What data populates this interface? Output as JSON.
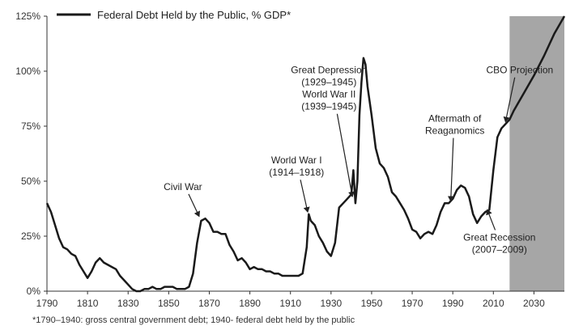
{
  "chart_data": {
    "type": "line",
    "legend": "Federal Debt Held by the Public, % GDP*",
    "legend_position": "top-left",
    "xlim": [
      1790,
      2045
    ],
    "ylim": [
      0,
      125
    ],
    "x_ticks": [
      "1790",
      "1810",
      "1830",
      "1850",
      "1870",
      "1890",
      "1910",
      "1930",
      "1950",
      "1970",
      "1990",
      "2010",
      "2030"
    ],
    "y_ticks": [
      "0%",
      "25%",
      "50%",
      "75%",
      "100%",
      "125%"
    ],
    "series": [
      {
        "name": "Federal Debt Held by the Public, % GDP*",
        "color": "#1a1a1a",
        "points": [
          [
            1790,
            40
          ],
          [
            1792,
            36
          ],
          [
            1794,
            30
          ],
          [
            1796,
            24
          ],
          [
            1798,
            20
          ],
          [
            1800,
            19
          ],
          [
            1802,
            17
          ],
          [
            1804,
            16
          ],
          [
            1806,
            12
          ],
          [
            1808,
            9
          ],
          [
            1810,
            6
          ],
          [
            1812,
            9
          ],
          [
            1814,
            13
          ],
          [
            1816,
            15
          ],
          [
            1818,
            13
          ],
          [
            1820,
            12
          ],
          [
            1822,
            11
          ],
          [
            1824,
            10
          ],
          [
            1826,
            7
          ],
          [
            1828,
            5
          ],
          [
            1830,
            3
          ],
          [
            1832,
            1
          ],
          [
            1834,
            0
          ],
          [
            1836,
            0
          ],
          [
            1838,
            1
          ],
          [
            1840,
            1
          ],
          [
            1842,
            2
          ],
          [
            1844,
            1
          ],
          [
            1846,
            1
          ],
          [
            1848,
            2
          ],
          [
            1850,
            2
          ],
          [
            1852,
            2
          ],
          [
            1854,
            1
          ],
          [
            1856,
            1
          ],
          [
            1858,
            1
          ],
          [
            1860,
            2
          ],
          [
            1862,
            8
          ],
          [
            1864,
            22
          ],
          [
            1866,
            32
          ],
          [
            1868,
            33
          ],
          [
            1870,
            31
          ],
          [
            1872,
            27
          ],
          [
            1874,
            27
          ],
          [
            1876,
            26
          ],
          [
            1878,
            26
          ],
          [
            1880,
            21
          ],
          [
            1882,
            18
          ],
          [
            1884,
            14
          ],
          [
            1886,
            15
          ],
          [
            1888,
            13
          ],
          [
            1890,
            10
          ],
          [
            1892,
            11
          ],
          [
            1894,
            10
          ],
          [
            1896,
            10
          ],
          [
            1898,
            9
          ],
          [
            1900,
            9
          ],
          [
            1902,
            8
          ],
          [
            1904,
            8
          ],
          [
            1906,
            7
          ],
          [
            1908,
            7
          ],
          [
            1910,
            7
          ],
          [
            1912,
            7
          ],
          [
            1914,
            7
          ],
          [
            1916,
            8
          ],
          [
            1918,
            20
          ],
          [
            1919,
            35
          ],
          [
            1920,
            32
          ],
          [
            1922,
            30
          ],
          [
            1924,
            25
          ],
          [
            1926,
            22
          ],
          [
            1928,
            18
          ],
          [
            1930,
            16
          ],
          [
            1932,
            22
          ],
          [
            1934,
            38
          ],
          [
            1936,
            40
          ],
          [
            1938,
            42
          ],
          [
            1940,
            44
          ],
          [
            1941,
            55
          ],
          [
            1942,
            40
          ],
          [
            1943,
            50
          ],
          [
            1944,
            80
          ],
          [
            1945,
            95
          ],
          [
            1946,
            106
          ],
          [
            1947,
            103
          ],
          [
            1948,
            93
          ],
          [
            1950,
            80
          ],
          [
            1952,
            65
          ],
          [
            1954,
            58
          ],
          [
            1956,
            56
          ],
          [
            1958,
            52
          ],
          [
            1960,
            45
          ],
          [
            1962,
            43
          ],
          [
            1964,
            40
          ],
          [
            1966,
            37
          ],
          [
            1968,
            33
          ],
          [
            1970,
            28
          ],
          [
            1972,
            27
          ],
          [
            1974,
            24
          ],
          [
            1976,
            26
          ],
          [
            1978,
            27
          ],
          [
            1980,
            26
          ],
          [
            1982,
            30
          ],
          [
            1984,
            36
          ],
          [
            1986,
            40
          ],
          [
            1988,
            40
          ],
          [
            1990,
            42
          ],
          [
            1992,
            46
          ],
          [
            1994,
            48
          ],
          [
            1996,
            47
          ],
          [
            1998,
            43
          ],
          [
            2000,
            35
          ],
          [
            2002,
            31
          ],
          [
            2004,
            34
          ],
          [
            2006,
            36
          ],
          [
            2008,
            37
          ],
          [
            2010,
            55
          ],
          [
            2012,
            70
          ],
          [
            2014,
            74
          ],
          [
            2016,
            76
          ],
          [
            2018,
            78
          ],
          [
            2020,
            82
          ],
          [
            2025,
            90
          ],
          [
            2030,
            98
          ],
          [
            2035,
            107
          ],
          [
            2040,
            117
          ],
          [
            2045,
            125
          ]
        ]
      }
    ],
    "projection": {
      "from": 2018,
      "to": 2045,
      "color": "#a6a6a6"
    },
    "annotations": [
      {
        "lines": [
          "Civil War"
        ],
        "text_at": [
          1857,
          46
        ],
        "arrow_to": [
          1865,
          34
        ]
      },
      {
        "lines": [
          "World War I",
          "(1914–1918)"
        ],
        "text_at": [
          1913,
          58
        ],
        "arrow_to": [
          1918.5,
          36
        ]
      },
      {
        "lines": [
          "Great Depression",
          "(1929–1945)",
          "World War II",
          "(1939–1945)"
        ],
        "text_at": [
          1929,
          99
        ],
        "arrow_to": [
          1940.5,
          43
        ]
      },
      {
        "lines": [
          "Aftermath of",
          "Reaganomics"
        ],
        "text_at": [
          1991,
          77
        ],
        "arrow_to": [
          1989,
          41
        ]
      },
      {
        "lines": [
          "CBO Projection"
        ],
        "text_at": [
          2023,
          99
        ],
        "arrow_to": [
          2016,
          77
        ]
      },
      {
        "lines": [
          "Great Recession",
          "(2007–2009)"
        ],
        "text_at": [
          2013,
          23
        ],
        "arrow_to": [
          2007,
          37
        ]
      }
    ],
    "footnote": "*1790–1940: gross central government debt; 1940- federal debt held by the public"
  }
}
